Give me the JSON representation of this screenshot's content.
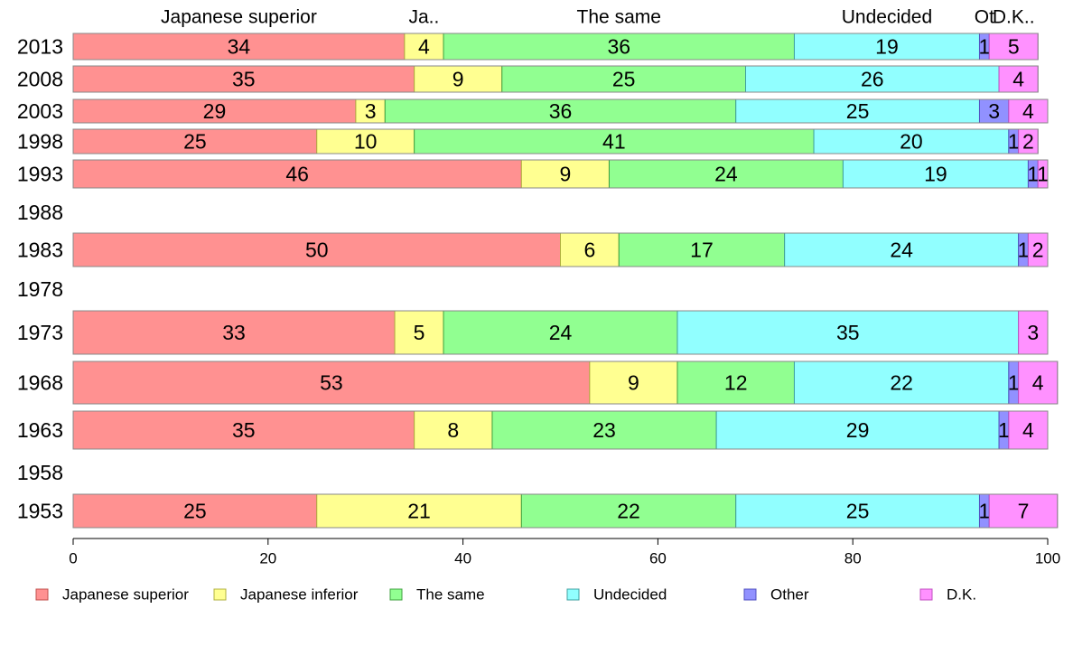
{
  "chart_data": {
    "type": "bar",
    "orientation": "horizontal",
    "stacked": true,
    "xlim": [
      0,
      100
    ],
    "x_ticks": [
      "0",
      "20",
      "40",
      "60",
      "80",
      "100"
    ],
    "categories": [
      "2013",
      "2008",
      "2003",
      "1998",
      "1993",
      "1988",
      "1983",
      "1978",
      "1973",
      "1968",
      "1963",
      "1958",
      "1953"
    ],
    "series": [
      {
        "name": "Japanese superior",
        "top_label": "Japanese superior",
        "color": "#ff9191",
        "stroke": "#c0504d",
        "values": [
          34,
          35,
          29,
          25,
          46,
          null,
          50,
          null,
          33,
          53,
          35,
          null,
          25
        ]
      },
      {
        "name": "Japanese inferior",
        "top_label": "Ja..",
        "color": "#ffff91",
        "stroke": "#b0b040",
        "values": [
          4,
          9,
          3,
          10,
          9,
          null,
          6,
          null,
          5,
          9,
          8,
          null,
          21
        ]
      },
      {
        "name": "The same",
        "top_label": "The same",
        "color": "#91ff91",
        "stroke": "#40a040",
        "values": [
          36,
          25,
          36,
          41,
          24,
          null,
          17,
          null,
          24,
          12,
          23,
          null,
          22
        ]
      },
      {
        "name": "Undecided",
        "top_label": "Undecided",
        "color": "#91ffff",
        "stroke": "#40a0a0",
        "values": [
          19,
          26,
          25,
          20,
          19,
          null,
          24,
          null,
          35,
          22,
          29,
          null,
          25
        ]
      },
      {
        "name": "Other",
        "top_label": "Ot",
        "color": "#9191ff",
        "stroke": "#5050c0",
        "values": [
          1,
          0,
          3,
          1,
          1,
          null,
          1,
          null,
          0,
          1,
          1,
          null,
          1
        ]
      },
      {
        "name": "D.K.",
        "top_label": "D.K..",
        "color": "#ff91ff",
        "stroke": "#c050c0",
        "values": [
          5,
          4,
          4,
          2,
          1,
          null,
          2,
          null,
          3,
          4,
          4,
          null,
          7
        ]
      }
    ],
    "legend_position": "bottom",
    "title": "",
    "xlabel": "",
    "ylabel": ""
  }
}
